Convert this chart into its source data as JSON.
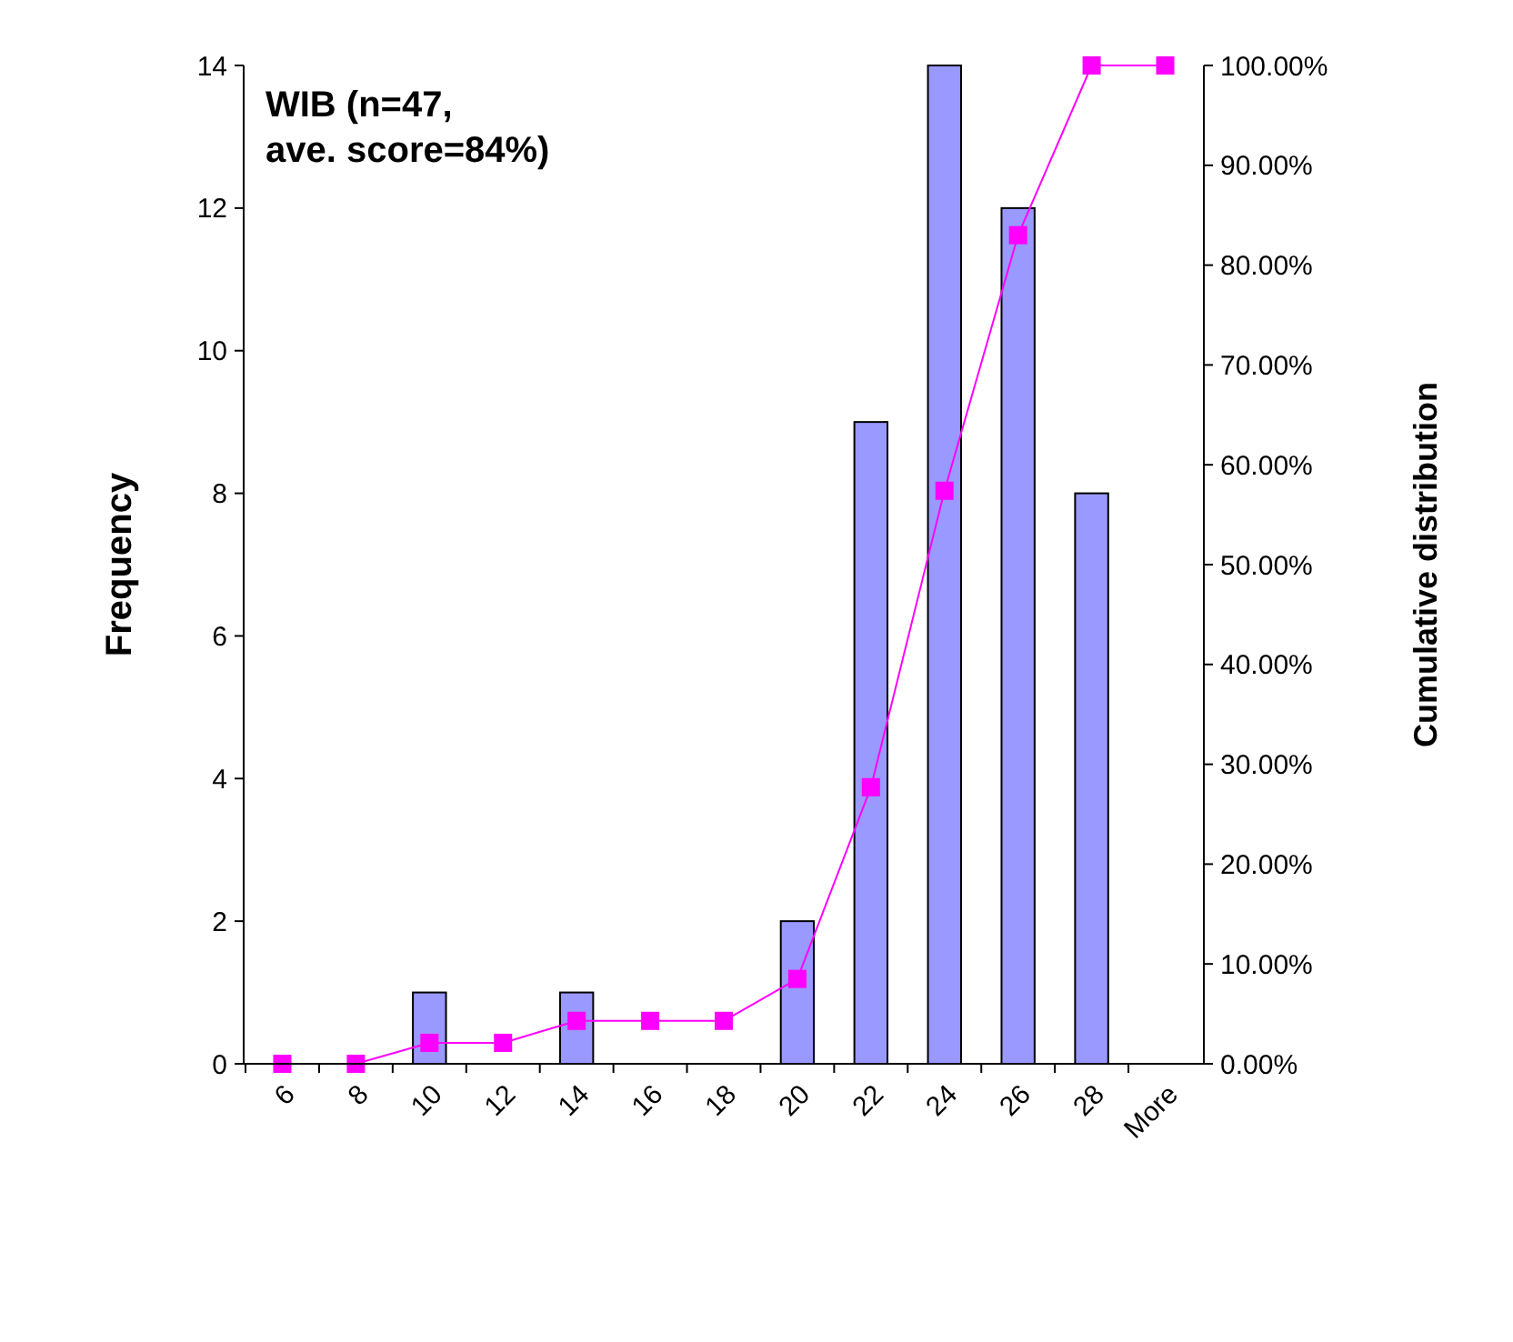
{
  "chart_data": {
    "type": "bar",
    "ylabel": "Frequency",
    "y2label": "Cumulative distribution",
    "annotations": [
      "WIB (n=47,\nave. score=84%)"
    ],
    "categories": [
      "6",
      "8",
      "10",
      "12",
      "14",
      "16",
      "18",
      "20",
      "22",
      "24",
      "26",
      "28",
      "More"
    ],
    "series": [
      {
        "color": "#9999ff",
        "values": [
          0,
          0,
          1,
          0,
          1,
          0,
          0,
          2,
          9,
          14,
          12,
          8,
          0
        ]
      },
      {
        "type": "line",
        "axis": "y2",
        "color": "#ff00ff",
        "marker": "square",
        "values": [
          0,
          0,
          2.1,
          2.1,
          4.3,
          4.3,
          4.3,
          8.5,
          27.7,
          57.4,
          83,
          100,
          100
        ]
      }
    ],
    "ylim": [
      0,
      14
    ],
    "yticks": [
      0,
      2,
      4,
      6,
      8,
      10,
      12,
      14
    ],
    "y2lim": [
      0,
      100
    ],
    "y2ticks": [
      {
        "value": 0,
        "label": "0.00%"
      },
      {
        "value": 10,
        "label": "10.00%"
      },
      {
        "value": 20,
        "label": "20.00%"
      },
      {
        "value": 30,
        "label": "30.00%"
      },
      {
        "value": 40,
        "label": "40.00%"
      },
      {
        "value": 50,
        "label": "50.00%"
      },
      {
        "value": 60,
        "label": "60.00%"
      },
      {
        "value": 70,
        "label": "70.00%"
      },
      {
        "value": 80,
        "label": "80.00%"
      },
      {
        "value": 90,
        "label": "90.00%"
      },
      {
        "value": 100,
        "label": "100.00%"
      }
    ],
    "grid": false
  }
}
